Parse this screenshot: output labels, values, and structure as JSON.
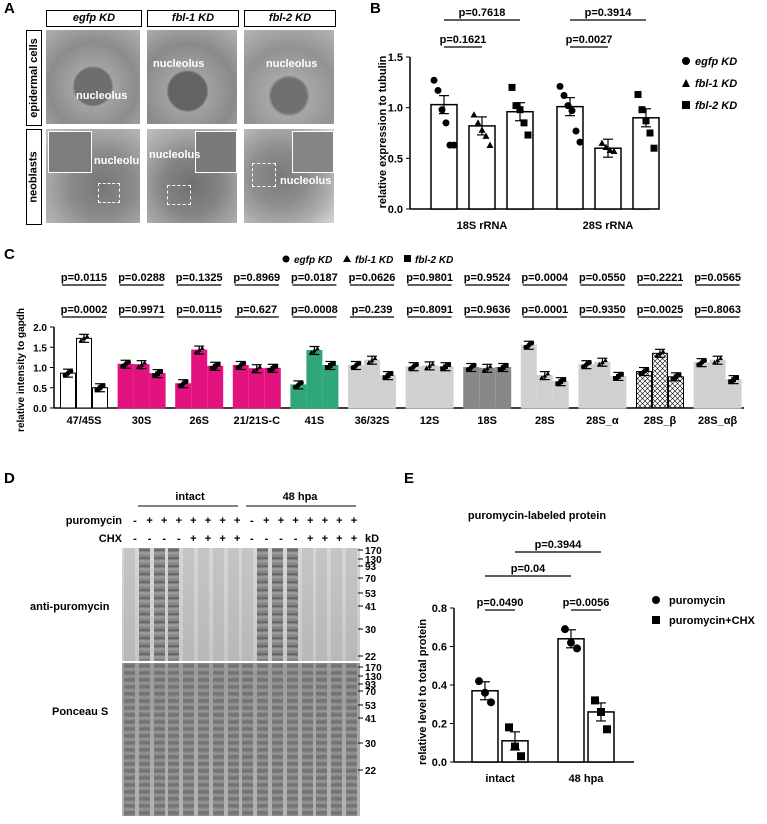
{
  "panels": [
    "A",
    "B",
    "C",
    "D",
    "E"
  ],
  "panelA": {
    "columns": [
      "egfp KD",
      "fbl-1 KD",
      "fbl-2 KD"
    ],
    "rows": [
      "epidermal cells",
      "neoblasts"
    ],
    "label": "nucleolus"
  },
  "colors": {
    "pink": "#e2127e",
    "green": "#2ea879",
    "lightgray": "#d0d0d0",
    "darkgray": "#888888"
  },
  "chart_data": [
    {
      "type": "bar",
      "panel": "B",
      "categories": [
        "18S rRNA",
        "28S rRNA"
      ],
      "series": [
        {
          "name": "egfp KD",
          "marker": "circle",
          "values": [
            1.03,
            1.01
          ],
          "points": [
            [
              1.27,
              1.17,
              0.98,
              0.85,
              0.63,
              0.63
            ],
            [
              1.21,
              1.12,
              1.02,
              0.97,
              0.77,
              0.66
            ]
          ]
        },
        {
          "name": "fbl-1 KD",
          "marker": "triangle",
          "values": [
            0.82,
            0.6
          ],
          "points": [
            [
              0.93,
              0.85,
              0.78,
              0.72,
              0.63
            ],
            [
              0.65,
              0.61,
              0.58,
              0.57
            ]
          ]
        },
        {
          "name": "fbl-2 KD",
          "marker": "square",
          "values": [
            0.96,
            0.9
          ],
          "points": [
            [
              1.2,
              1.02,
              0.98,
              0.85,
              0.73
            ],
            [
              1.13,
              0.98,
              0.87,
              0.75,
              0.6
            ]
          ]
        }
      ],
      "ylabel": "relative expression to tubulin",
      "ylim": [
        0,
        1.5
      ],
      "yticks": [
        "0.0",
        "0.5",
        "1.0",
        "1.5"
      ],
      "annotations": [
        "p=0.7618",
        "p=0.1621",
        "p=0.3914",
        "p=0.0027"
      ]
    },
    {
      "type": "bar",
      "panel": "C",
      "legend": [
        "egfp KD",
        "fbl-1 KD",
        "fbl-2 KD"
      ],
      "ylabel": "relative intensity to gapdh",
      "ylim": [
        0,
        2.0
      ],
      "yticks": [
        "0.0",
        "0.5",
        "1.0",
        "1.5",
        "2.0"
      ],
      "groups": [
        {
          "name": "47/45S",
          "values": [
            0.86,
            1.72,
            0.5
          ],
          "color": "white",
          "p_top": "p=0.0115",
          "p_bottom": "p=0.0002"
        },
        {
          "name": "30S",
          "values": [
            1.08,
            1.07,
            0.85
          ],
          "color": "pink",
          "p_top": "p=0.0288",
          "p_bottom": "p=0.9971"
        },
        {
          "name": "26S",
          "values": [
            0.6,
            1.43,
            1.03
          ],
          "color": "pink",
          "p_top": "p=0.1325",
          "p_bottom": "p=0.0115"
        },
        {
          "name": "21/21S-C",
          "values": [
            1.05,
            0.97,
            0.98
          ],
          "color": "pink",
          "p_top": "p=0.8969",
          "p_bottom": "p=0.627"
        },
        {
          "name": "41S",
          "values": [
            0.57,
            1.42,
            1.05
          ],
          "color": "green",
          "p_top": "p=0.0187",
          "p_bottom": "p=0.0008"
        },
        {
          "name": "36/32S",
          "values": [
            1.05,
            1.18,
            0.8
          ],
          "color": "lightgray",
          "p_top": "p=0.0626",
          "p_bottom": "p=0.239"
        },
        {
          "name": "12S",
          "values": [
            1.02,
            1.04,
            1.02
          ],
          "color": "lightgray",
          "p_top": "p=0.9801",
          "p_bottom": "p=0.8091"
        },
        {
          "name": "18S",
          "values": [
            1.0,
            0.98,
            1.0
          ],
          "color": "darkgray",
          "p_top": "p=0.9524",
          "p_bottom": "p=0.9636"
        },
        {
          "name": "28S",
          "values": [
            1.55,
            0.8,
            0.65
          ],
          "color": "lightgray",
          "p_top": "p=0.0004",
          "p_bottom": "p=0.0001"
        },
        {
          "name": "28S_α",
          "values": [
            1.07,
            1.13,
            0.78
          ],
          "color": "lightgray",
          "p_top": "p=0.0550",
          "p_bottom": "p=0.9350"
        },
        {
          "name": "28S_β",
          "values": [
            0.9,
            1.35,
            0.77
          ],
          "color": "hatch",
          "p_top": "p=0.2221",
          "p_bottom": "p=0.0025"
        },
        {
          "name": "28S_αβ",
          "values": [
            1.12,
            1.18,
            0.7
          ],
          "color": "lightgray",
          "p_top": "p=0.0565",
          "p_bottom": "p=0.8063"
        }
      ]
    },
    {
      "type": "bar",
      "panel": "E",
      "title": "puromycin-labeled protein",
      "categories": [
        "intact",
        "48 hpa"
      ],
      "series": [
        {
          "name": "puromycin",
          "marker": "circle",
          "values": [
            0.37,
            0.64
          ],
          "points": [
            [
              0.42,
              0.36,
              0.31
            ],
            [
              0.69,
              0.62,
              0.59
            ]
          ]
        },
        {
          "name": "puromycin+CHX",
          "marker": "square",
          "values": [
            0.11,
            0.26
          ],
          "points": [
            [
              0.18,
              0.08,
              0.03
            ],
            [
              0.32,
              0.26,
              0.17
            ]
          ]
        }
      ],
      "ylabel": "relative level to total protein",
      "ylim": [
        0,
        0.8
      ],
      "yticks": [
        "0.0",
        "0.2",
        "0.4",
        "0.6",
        "0.8"
      ],
      "annotations": [
        "p=0.3944",
        "p=0.04",
        "p=0.0490",
        "p=0.0056"
      ]
    }
  ],
  "panelD": {
    "groups": [
      "intact",
      "48 hpa"
    ],
    "puromycin_label": "puromycin",
    "chx_label": "CHX",
    "puromycin_row": [
      "-",
      "+",
      "+",
      "+",
      "+",
      "+",
      "+",
      "+",
      "-",
      "+",
      "+",
      "+",
      "+",
      "+",
      "+",
      "+"
    ],
    "chx_row": [
      "-",
      "-",
      "-",
      "-",
      "+",
      "+",
      "+",
      "+",
      "-",
      "-",
      "-",
      "-",
      "+",
      "+",
      "+",
      "+"
    ],
    "blots": [
      "anti-puromycin",
      "Ponceau S"
    ],
    "kd_label": "kD",
    "markers_top": [
      "170",
      "130",
      "93",
      "70",
      "53",
      "41",
      "30",
      "22"
    ],
    "markers_bottom": [
      "170",
      "130",
      "93",
      "70",
      "53",
      "41",
      "30",
      "22"
    ]
  }
}
